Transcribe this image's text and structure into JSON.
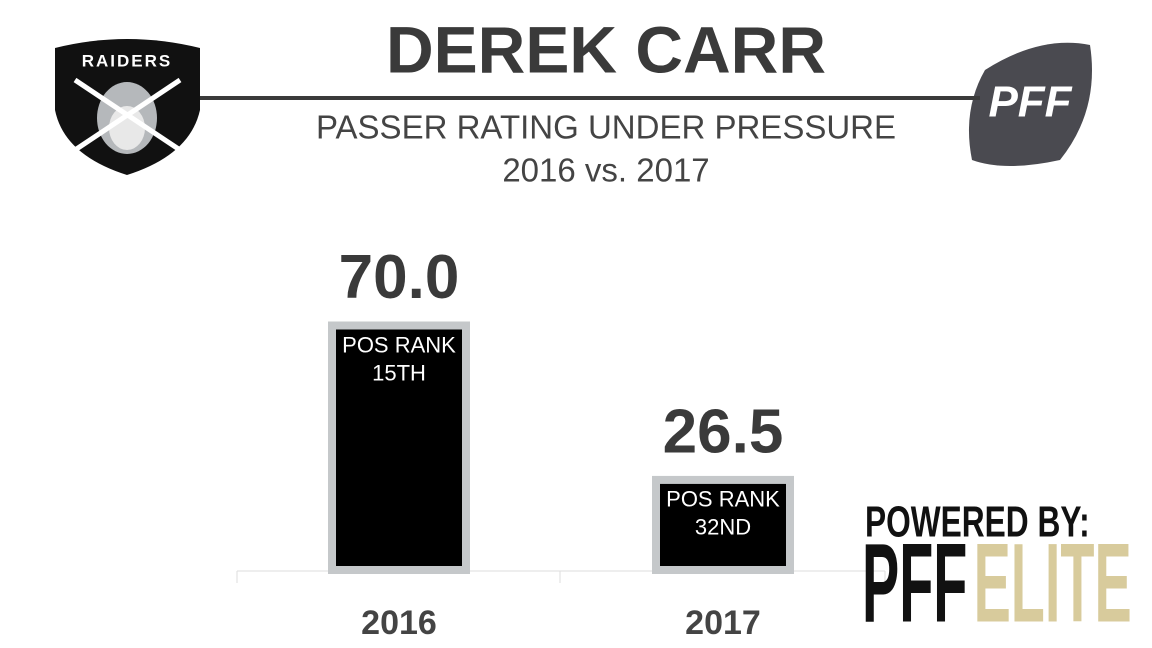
{
  "chart_data": {
    "type": "bar",
    "title": "DEREK CARR",
    "subtitle": [
      "PASSER RATING UNDER PRESSURE",
      "2016 vs. 2017"
    ],
    "categories": [
      "2016",
      "2017"
    ],
    "values": [
      70.0,
      26.5
    ],
    "value_labels": [
      "70.0",
      "26.5"
    ],
    "bar_labels": [
      [
        "POS RANK",
        "15TH"
      ],
      [
        "POS RANK",
        "32ND"
      ]
    ],
    "color": "#000000",
    "border_color": "#c5c8ca"
  },
  "logos": {
    "team": "RAIDERS",
    "brand": "PFF",
    "powered_by": "POWERED BY:",
    "elite": [
      "PFF",
      "ELITE"
    ],
    "elite_color": "#d8cb9c"
  }
}
